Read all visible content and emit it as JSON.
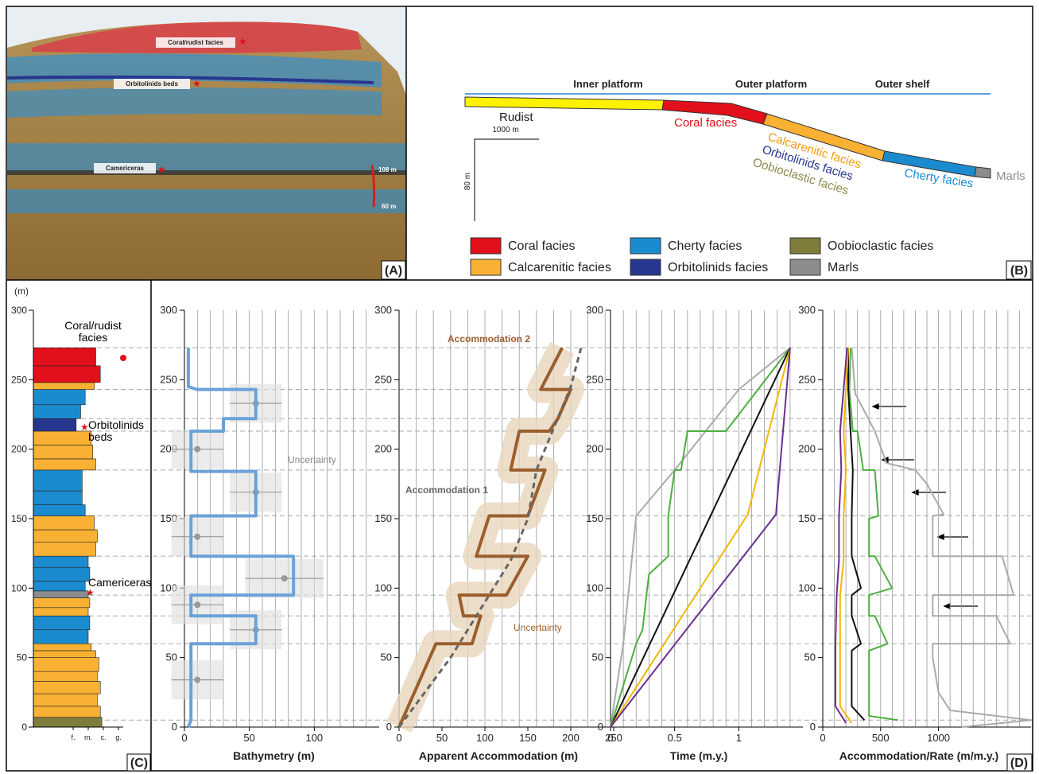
{
  "panel_a": {
    "labels": [
      "Coral/rudist facies",
      "Orbitolinids beds",
      "Camericeras"
    ],
    "heights": [
      "108 m",
      "60 m"
    ],
    "tag": "(A)"
  },
  "panel_b": {
    "zones": [
      "Inner platform",
      "Outer platform",
      "Outer shelf"
    ],
    "facies_labels": [
      "Rudist",
      "Coral facies",
      "Calcarenitic facies",
      "Orbitolinids facies",
      "Oobioclastic facies",
      "Cherty facies",
      "Marls"
    ],
    "scale": [
      "1000 m",
      "80 m"
    ],
    "legend": [
      {
        "name": "Coral facies",
        "color": "#e2101a"
      },
      {
        "name": "Calcarenitic facies",
        "color": "#f8b133"
      },
      {
        "name": "Cherty facies",
        "color": "#1b8bd0"
      },
      {
        "name": "Orbitolinids facies",
        "color": "#27378f"
      },
      {
        "name": "Oobioclastic facies",
        "color": "#7f7d3c"
      },
      {
        "name": "Marls",
        "color": "#8c8c8c"
      }
    ],
    "tag": "(B)"
  },
  "panel_c": {
    "unit": "(m)",
    "ylim": [
      0,
      300
    ],
    "yticks": [
      0,
      50,
      100,
      150,
      200,
      250,
      300
    ],
    "xticks": [
      {
        "value": 1,
        "label": "f."
      },
      {
        "value": 2,
        "label": "m."
      },
      {
        "value": 3,
        "label": "c."
      },
      {
        "value": 4,
        "label": "g."
      }
    ],
    "annotations": [
      [
        "Coral/rudist",
        "facies"
      ],
      [
        "Orbitolinids",
        "beds"
      ],
      [
        "Camericeras"
      ]
    ],
    "layers": [
      {
        "base": 0,
        "top": 7,
        "grain": 2.9,
        "color": "#7f7d3c"
      },
      {
        "base": 7,
        "top": 15,
        "grain": 2.8,
        "color": "#f8b133"
      },
      {
        "base": 15,
        "top": 24,
        "grain": 2.6,
        "color": "#f8b133"
      },
      {
        "base": 24,
        "top": 33,
        "grain": 2.8,
        "color": "#f8b133"
      },
      {
        "base": 33,
        "top": 40,
        "grain": 2.6,
        "color": "#f8b133"
      },
      {
        "base": 40,
        "top": 50,
        "grain": 2.7,
        "color": "#f8b133"
      },
      {
        "base": 50,
        "top": 55,
        "grain": 2.5,
        "color": "#f8b133"
      },
      {
        "base": 55,
        "top": 60,
        "grain": 2.2,
        "color": "#f8b133"
      },
      {
        "base": 60,
        "top": 70,
        "grain": 2.0,
        "color": "#1b8bd0"
      },
      {
        "base": 70,
        "top": 80,
        "grain": 2.1,
        "color": "#1b8bd0"
      },
      {
        "base": 80,
        "top": 86,
        "grain": 2.0,
        "color": "#f8b133"
      },
      {
        "base": 86,
        "top": 93,
        "grain": 2.1,
        "color": "#f8b133"
      },
      {
        "base": 93,
        "top": 98,
        "grain": 2.0,
        "color": "#8c8c8c"
      },
      {
        "base": 98,
        "top": 105,
        "grain": 1.8,
        "color": "#1b8bd0"
      },
      {
        "base": 105,
        "top": 115,
        "grain": 2.1,
        "color": "#1b8bd0"
      },
      {
        "base": 115,
        "top": 123,
        "grain": 2.0,
        "color": "#1b8bd0"
      },
      {
        "base": 123,
        "top": 133,
        "grain": 2.5,
        "color": "#f8b133"
      },
      {
        "base": 133,
        "top": 142,
        "grain": 2.6,
        "color": "#f8b133"
      },
      {
        "base": 142,
        "top": 152,
        "grain": 2.4,
        "color": "#f8b133"
      },
      {
        "base": 152,
        "top": 160,
        "grain": 1.8,
        "color": "#1b8bd0"
      },
      {
        "base": 160,
        "top": 170,
        "grain": 1.6,
        "color": "#1b8bd0"
      },
      {
        "base": 170,
        "top": 185,
        "grain": 1.6,
        "color": "#1b8bd0"
      },
      {
        "base": 185,
        "top": 193,
        "grain": 2.5,
        "color": "#f8b133"
      },
      {
        "base": 193,
        "top": 203,
        "grain": 2.3,
        "color": "#f8b133"
      },
      {
        "base": 203,
        "top": 213,
        "grain": 2.2,
        "color": "#f8b133"
      },
      {
        "base": 213,
        "top": 222,
        "grain": 1.2,
        "color": "#27378f"
      },
      {
        "base": 222,
        "top": 232,
        "grain": 1.5,
        "color": "#1b8bd0"
      },
      {
        "base": 232,
        "top": 243,
        "grain": 1.8,
        "color": "#1b8bd0"
      },
      {
        "base": 243,
        "top": 248,
        "grain": 2.4,
        "color": "#f8b133"
      },
      {
        "base": 248,
        "top": 260,
        "grain": 2.8,
        "color": "#e2101a"
      },
      {
        "base": 260,
        "top": 273,
        "grain": 2.5,
        "color": "#e2101a"
      }
    ],
    "tag": "(C)"
  },
  "horizons": [
    5,
    60,
    80,
    95,
    123,
    152,
    185,
    213,
    222,
    243,
    273
  ],
  "tag_d": "(D)",
  "chart_data": [
    {
      "type": "line",
      "xlabel": "Bathymetry (m)",
      "xlim": [
        0,
        150
      ],
      "xticks": [
        0,
        50,
        100
      ],
      "xgrid": [
        10,
        20,
        30,
        40,
        50,
        60,
        70,
        80,
        90,
        100,
        110,
        120,
        130,
        140
      ],
      "ylim": [
        0,
        300
      ],
      "yticks": [
        0,
        50,
        100,
        150,
        200,
        250,
        300
      ],
      "annotation": "Uncertainty",
      "series": [
        {
          "color": "#6aa2d8",
          "line_width": 4,
          "x": [
            3,
            3,
            10,
            55,
            55,
            30,
            30,
            5,
            5,
            55,
            55,
            5,
            5,
            84,
            84,
            5,
            5,
            55,
            55,
            5,
            5,
            3
          ],
          "y": [
            273,
            245,
            243,
            243,
            222,
            222,
            213,
            213,
            184,
            184,
            152,
            152,
            123,
            123,
            95,
            95,
            80,
            80,
            60,
            60,
            5,
            0
          ]
        }
      ],
      "points": {
        "color": "#999999",
        "x": [
          55,
          10,
          55,
          10,
          77,
          10,
          55,
          10
        ],
        "y": [
          233,
          200,
          169,
          137,
          107,
          88,
          70,
          34
        ],
        "err": [
          20,
          20,
          20,
          20,
          30,
          20,
          20,
          20
        ]
      }
    },
    {
      "type": "line",
      "xlabel": "Apparent Accommodation (m)",
      "xlim": [
        0,
        250
      ],
      "xticks": [
        0,
        50,
        100,
        150,
        200,
        250
      ],
      "xgrid": [
        20,
        40,
        60,
        80,
        100,
        120,
        140,
        160,
        180,
        200,
        220,
        240
      ],
      "ylim": [
        0,
        300
      ],
      "yticks": [
        0,
        50,
        100,
        150,
        200,
        250,
        300
      ],
      "annotation": "Uncertainty",
      "series": [
        {
          "name": "Accommodation 2",
          "color": "#9b5f2c",
          "band_color": "#e9d6bd",
          "line_width": 4,
          "x": [
            0,
            43,
            85,
            95,
            75,
            70,
            125,
            150,
            90,
            105,
            150,
            170,
            130,
            140,
            175,
            185,
            200,
            165,
            190
          ],
          "y": [
            0,
            60,
            60,
            80,
            80,
            95,
            95,
            123,
            123,
            152,
            152,
            185,
            185,
            213,
            213,
            222,
            243,
            243,
            273
          ]
        },
        {
          "name": "Accommodation 1",
          "color": "#666666",
          "line_width": 3,
          "dashed": true,
          "x": [
            0,
            60,
            100,
            130,
            150,
            160,
            180,
            200,
            212
          ],
          "y": [
            0,
            50,
            90,
            120,
            150,
            185,
            215,
            245,
            273
          ]
        }
      ]
    },
    {
      "type": "line",
      "xlabel": "Time (m.y.)",
      "xlim": [
        0,
        1.5
      ],
      "xticks": [
        0,
        0.5,
        1
      ],
      "xgrid": [
        0.1,
        0.2,
        0.3,
        0.4,
        0.5,
        0.6,
        0.7,
        0.8,
        0.9,
        1,
        1.1,
        1.2,
        1.3,
        1.4
      ],
      "ylim": [
        0,
        300
      ],
      "yticks": [
        0,
        50,
        100,
        150,
        200,
        250,
        300
      ],
      "series": [
        {
          "color": "#aaaaaa",
          "x": [
            0,
            0.1,
            0.2,
            0.5,
            1,
            1.4
          ],
          "y": [
            0,
            60,
            152,
            185,
            243,
            273
          ]
        },
        {
          "color": "#4caf3f",
          "x": [
            0,
            0.2,
            0.25,
            0.28,
            0.3,
            0.45,
            0.45,
            0.5,
            0.55,
            0.6,
            0.9,
            1.4
          ],
          "y": [
            0,
            60,
            70,
            95,
            110,
            123,
            152,
            185,
            185,
            213,
            213,
            273
          ]
        },
        {
          "color": "#111111",
          "x": [
            0,
            1.4
          ],
          "y": [
            0,
            273
          ]
        },
        {
          "color": "#f2b705",
          "x": [
            0,
            1.07,
            1.4
          ],
          "y": [
            0,
            153,
            273
          ]
        },
        {
          "color": "#6b2f8e",
          "x": [
            0,
            1.29,
            1.4
          ],
          "y": [
            0,
            153,
            273
          ]
        }
      ]
    },
    {
      "type": "line",
      "xlabel": "Accommodation/Rate (m/m.y.)",
      "xlim": [
        0,
        1800
      ],
      "xticks": [
        0,
        500,
        1000
      ],
      "xgrid": [
        100,
        200,
        300,
        400,
        500,
        600,
        700,
        800,
        900,
        1000,
        1100,
        1200,
        1300,
        1400,
        1500,
        1600,
        1700
      ],
      "ylim": [
        0,
        300
      ],
      "yticks": [
        0,
        50,
        100,
        150,
        200,
        250,
        300
      ],
      "series": [
        {
          "color": "#aaaaaa",
          "x": [
            1200,
            1800,
            1100,
            1000,
            950,
            950,
            1620,
            1500,
            950,
            950,
            1650,
            1550,
            950,
            950,
            1045,
            900,
            800,
            550,
            450,
            280,
            250
          ],
          "y": [
            0,
            5,
            12,
            25,
            50,
            60,
            60,
            80,
            80,
            95,
            95,
            123,
            123,
            152,
            153,
            175,
            185,
            190,
            213,
            240,
            273
          ]
        },
        {
          "color": "#4caf3f",
          "x": [
            650,
            400,
            400,
            560,
            450,
            400,
            400,
            600,
            450,
            400,
            400,
            480,
            450,
            350,
            300,
            260,
            230,
            240
          ],
          "y": [
            5,
            8,
            55,
            60,
            80,
            80,
            95,
            100,
            123,
            123,
            150,
            152,
            185,
            185,
            213,
            213,
            243,
            273
          ]
        },
        {
          "color": "#111111",
          "x": [
            360,
            250,
            250,
            330,
            250,
            250,
            330,
            250,
            250,
            260,
            240,
            220,
            220
          ],
          "y": [
            5,
            15,
            55,
            60,
            80,
            95,
            100,
            123,
            152,
            185,
            213,
            243,
            273
          ]
        },
        {
          "color": "#f2b705",
          "x": [
            250,
            150,
            150,
            150,
            180,
            180,
            200,
            180,
            200,
            220
          ],
          "y": [
            3,
            15,
            60,
            95,
            120,
            152,
            185,
            213,
            243,
            273
          ]
        },
        {
          "color": "#6b2f8e",
          "x": [
            200,
            110,
            110,
            120,
            140,
            140,
            160,
            150,
            180,
            210
          ],
          "y": [
            3,
            15,
            60,
            95,
            120,
            152,
            185,
            213,
            243,
            273
          ]
        }
      ]
    }
  ]
}
